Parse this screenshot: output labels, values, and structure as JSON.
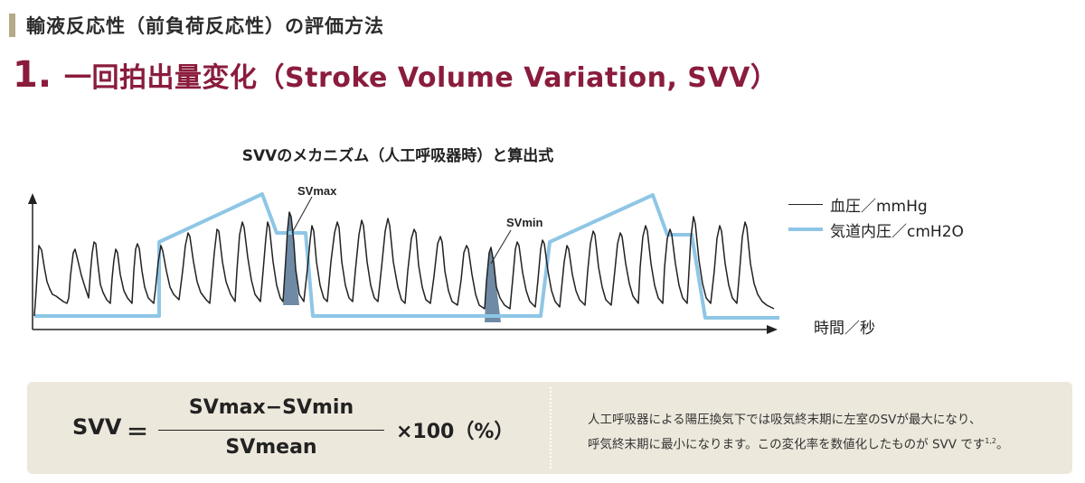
{
  "section": {
    "title": "輸液反応性（前負荷反応性）の評価方法"
  },
  "heading": {
    "number": "1",
    "dot": ".",
    "text": "一回拍出量変化（Stroke Volume Variation, SVV）"
  },
  "diagram": {
    "title": "SVVのメカニズム（人工呼吸器時）と算出式",
    "label_svmax": "SVmax",
    "label_svmin": "SVmin",
    "x_axis_label": "時間／秒",
    "legend": [
      {
        "label": "血圧／mmHg",
        "color": "#222222"
      },
      {
        "label": "気道内圧／cmH2O",
        "color": "#8ec6e6"
      }
    ],
    "colors": {
      "shaded": "#6f8aa4"
    }
  },
  "formula": {
    "lhs": "SVV",
    "equals": "＝",
    "numerator": "SVmax−SVmin",
    "denominator": "SVmean",
    "multiplier": "×100（%）",
    "note_line1": "人工呼吸器による陽圧換気下では吸気終末期に左室のSVが最大になり、",
    "note_line2": "呼気終末期に最小になります。この変化率を数値化したものが SVV です",
    "note_ref": "1,2",
    "note_end": "。"
  }
}
